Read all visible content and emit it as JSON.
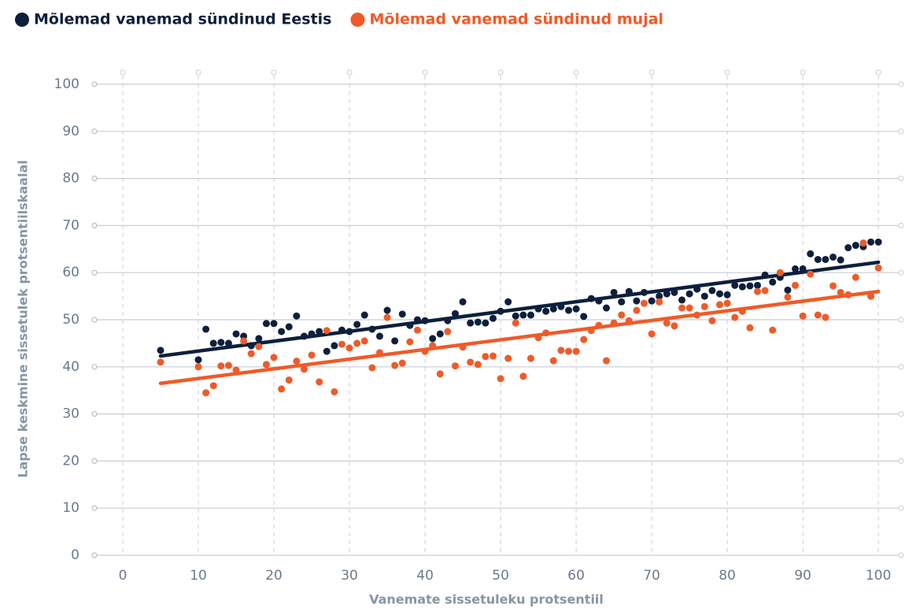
{
  "chart_data": {
    "type": "scatter",
    "x_label": "Vanemate sissetuleku protsentiil",
    "y_label": "Lapse keskmine sissetulek protsentiilskaalal",
    "x": [
      5,
      10,
      11,
      12,
      13,
      14,
      15,
      16,
      17,
      18,
      19,
      20,
      21,
      22,
      23,
      24,
      25,
      26,
      27,
      28,
      29,
      30,
      31,
      32,
      33,
      34,
      35,
      36,
      37,
      38,
      39,
      40,
      41,
      42,
      43,
      44,
      45,
      46,
      47,
      48,
      49,
      50,
      51,
      52,
      53,
      54,
      55,
      56,
      57,
      58,
      59,
      60,
      61,
      62,
      63,
      64,
      65,
      66,
      67,
      68,
      69,
      70,
      71,
      72,
      73,
      74,
      75,
      76,
      77,
      78,
      79,
      80,
      81,
      82,
      83,
      84,
      85,
      86,
      87,
      88,
      89,
      90,
      91,
      92,
      93,
      94,
      95,
      96,
      97,
      98,
      99,
      100
    ],
    "trend_x": [
      5,
      100
    ],
    "series": [
      {
        "name": "Mõlemad vanemad sündinud Eestis",
        "color": "#0d1f3c",
        "values": [
          43.5,
          41.5,
          48,
          45,
          45.2,
          45,
          47,
          46.5,
          44.5,
          46,
          49.2,
          49.2,
          47.5,
          48.5,
          50.8,
          46.5,
          47,
          47.5,
          43.3,
          44.5,
          47.8,
          47.5,
          49,
          51,
          48,
          46.5,
          52,
          45.5,
          51.2,
          48.8,
          50,
          49.8,
          46,
          47,
          49.8,
          51.3,
          53.8,
          49.3,
          49.5,
          49.3,
          50.3,
          51.8,
          53.8,
          50.8,
          51,
          51,
          52.3,
          51.8,
          52.3,
          52.8,
          52,
          52.3,
          50.7,
          54.5,
          54,
          52.5,
          55.8,
          53.8,
          56,
          54,
          55.8,
          54,
          55,
          55.5,
          55.8,
          54.2,
          55.5,
          56.5,
          55,
          56.2,
          55.5,
          55.3,
          57.3,
          57,
          57.2,
          57.3,
          59.5,
          58,
          59,
          56.3,
          60.8,
          60.8,
          64,
          62.8,
          62.8,
          63.3,
          62.7,
          65.3,
          65.8,
          65.5,
          66.5,
          66.5
        ],
        "trend": [
          42.3,
          62.2
        ]
      },
      {
        "name": "Mõlemad vanemad sündinud mujal",
        "color": "#f05a28",
        "values": [
          41,
          40,
          34.5,
          36,
          40.2,
          40.3,
          39.3,
          45.5,
          42.8,
          44.3,
          40.5,
          42,
          35.3,
          37.2,
          41.2,
          39.5,
          42.5,
          36.8,
          47.7,
          34.7,
          44.8,
          44,
          45,
          45.5,
          39.8,
          43,
          50.5,
          40.3,
          40.8,
          45.3,
          47.8,
          43.3,
          44.5,
          38.5,
          47.5,
          40.2,
          44.2,
          41,
          40.5,
          42.2,
          42.3,
          37.5,
          41.8,
          49.3,
          38,
          41.8,
          46.2,
          47.2,
          41.3,
          43.5,
          43.3,
          43.3,
          45.8,
          47.7,
          48.8,
          41.3,
          49.3,
          51,
          49.8,
          52,
          53.5,
          47,
          53.8,
          49.3,
          48.7,
          52.5,
          52.5,
          51,
          52.8,
          49.8,
          53.2,
          53.5,
          50.5,
          51.8,
          48.3,
          56,
          56.2,
          47.8,
          60,
          54.8,
          57.3,
          50.8,
          59.7,
          51,
          50.5,
          57.2,
          55.8,
          55.3,
          59,
          66.3,
          55,
          61
        ],
        "trend": [
          36.5,
          56
        ]
      }
    ],
    "xlim": [
      -3.75,
      103
    ],
    "xticks": [
      0,
      10,
      20,
      30,
      40,
      50,
      60,
      70,
      80,
      90,
      100
    ],
    "ylim": [
      0,
      100
    ],
    "yticks": [
      0,
      10,
      20,
      30,
      40,
      50,
      60,
      70,
      80,
      90,
      100
    ],
    "grid": true
  }
}
